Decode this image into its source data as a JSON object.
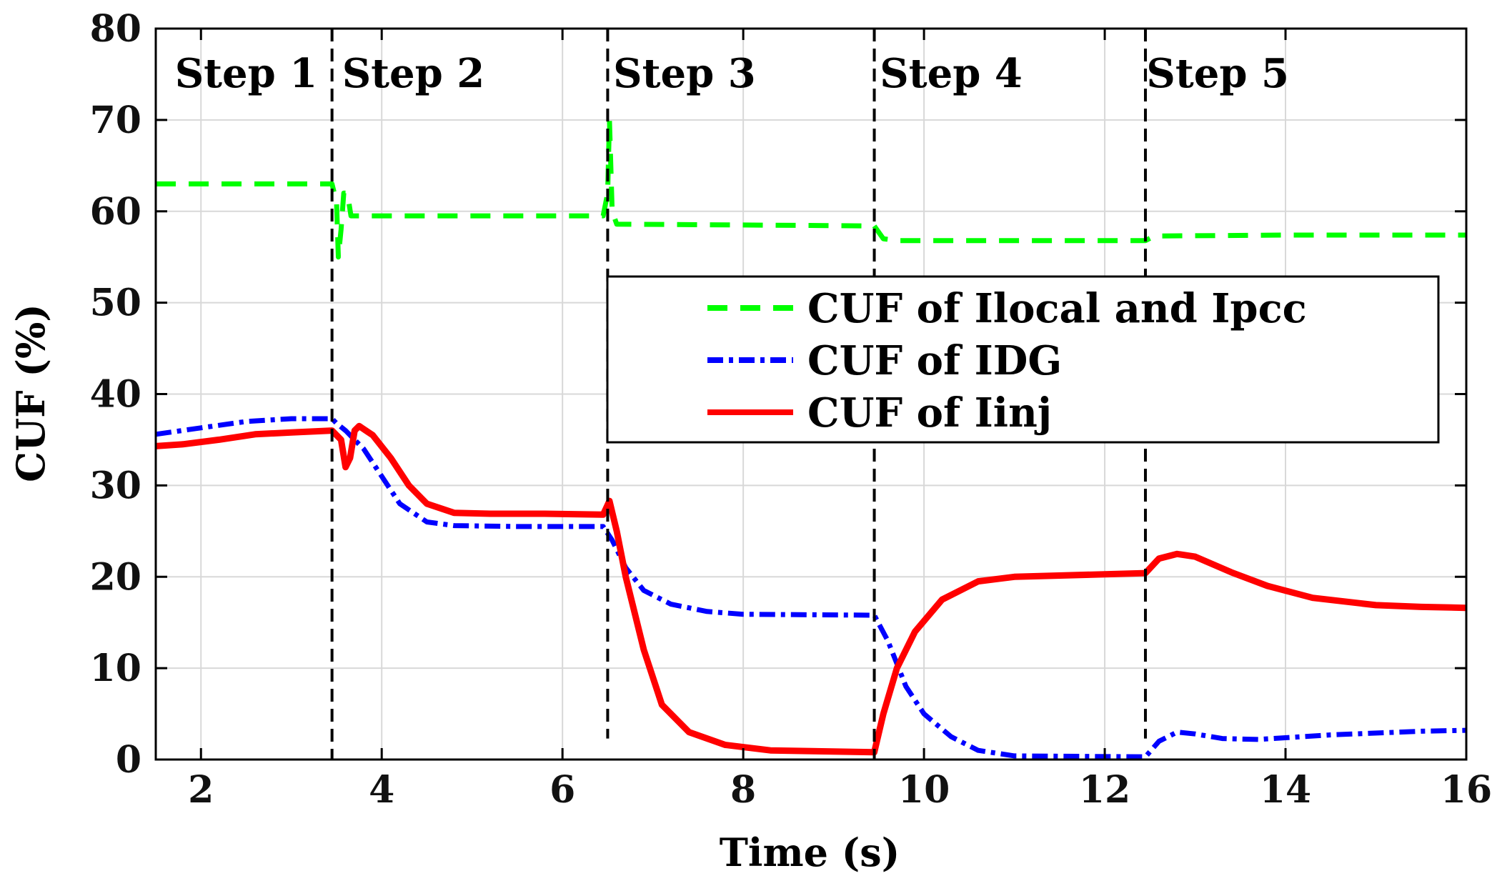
{
  "chart_data": {
    "type": "line",
    "title": "",
    "xlabel": "Time (s)",
    "ylabel": "CUF (%)",
    "xlim": [
      1.5,
      16
    ],
    "ylim": [
      0,
      80
    ],
    "xticks": [
      2,
      4,
      6,
      8,
      10,
      12,
      14,
      16
    ],
    "yticks": [
      0,
      10,
      20,
      30,
      40,
      50,
      60,
      70,
      80
    ],
    "grid": true,
    "step_boundaries": [
      3.45,
      6.5,
      9.45,
      12.45
    ],
    "step_labels": [
      {
        "text": "Step 1",
        "x": 2.5
      },
      {
        "text": "Step 2",
        "x": 4.35
      },
      {
        "text": "Step 3",
        "x": 7.35
      },
      {
        "text": "Step 4",
        "x": 10.3
      },
      {
        "text": "Step 5",
        "x": 13.25
      }
    ],
    "legend_position": "center-right",
    "series": [
      {
        "name": "CUF of Ilocal and Ipcc",
        "color": "#00ff00",
        "style": "dashed",
        "points": [
          [
            1.5,
            63
          ],
          [
            3.45,
            63
          ],
          [
            3.5,
            61
          ],
          [
            3.52,
            55
          ],
          [
            3.55,
            58
          ],
          [
            3.58,
            62
          ],
          [
            3.62,
            62
          ],
          [
            3.66,
            59.5
          ],
          [
            3.7,
            59.5
          ],
          [
            5,
            59.5
          ],
          [
            6.45,
            59.5
          ],
          [
            6.5,
            62
          ],
          [
            6.52,
            70
          ],
          [
            6.55,
            60
          ],
          [
            6.6,
            58.6
          ],
          [
            8,
            58.5
          ],
          [
            9.45,
            58.4
          ],
          [
            9.55,
            57
          ],
          [
            9.7,
            56.8
          ],
          [
            11,
            56.8
          ],
          [
            12.45,
            56.8
          ],
          [
            12.55,
            57.3
          ],
          [
            14,
            57.4
          ],
          [
            16,
            57.4
          ]
        ]
      },
      {
        "name": "CUF of IDG",
        "color": "#0000ff",
        "style": "dashdot",
        "points": [
          [
            1.5,
            35.6
          ],
          [
            2,
            36.3
          ],
          [
            2.5,
            37
          ],
          [
            3,
            37.3
          ],
          [
            3.45,
            37.3
          ],
          [
            3.5,
            36.8
          ],
          [
            3.6,
            36
          ],
          [
            3.8,
            34
          ],
          [
            4,
            31
          ],
          [
            4.2,
            28
          ],
          [
            4.5,
            26
          ],
          [
            4.8,
            25.6
          ],
          [
            5.5,
            25.5
          ],
          [
            6.45,
            25.5
          ],
          [
            6.55,
            24
          ],
          [
            6.7,
            21
          ],
          [
            6.9,
            18.5
          ],
          [
            7.2,
            17
          ],
          [
            7.6,
            16.2
          ],
          [
            8,
            15.9
          ],
          [
            9.45,
            15.8
          ],
          [
            9.6,
            13
          ],
          [
            9.8,
            8
          ],
          [
            10,
            5
          ],
          [
            10.3,
            2.5
          ],
          [
            10.6,
            1
          ],
          [
            11,
            0.4
          ],
          [
            12.45,
            0.3
          ],
          [
            12.6,
            2
          ],
          [
            12.8,
            3
          ],
          [
            13,
            2.8
          ],
          [
            13.3,
            2.3
          ],
          [
            13.7,
            2.2
          ],
          [
            14.5,
            2.7
          ],
          [
            15.5,
            3.1
          ],
          [
            16,
            3.2
          ]
        ]
      },
      {
        "name": "CUF of Iinj",
        "color": "#ff0000",
        "style": "solid",
        "points": [
          [
            1.5,
            34.3
          ],
          [
            1.8,
            34.5
          ],
          [
            2.2,
            35
          ],
          [
            2.6,
            35.6
          ],
          [
            3,
            35.8
          ],
          [
            3.45,
            36
          ],
          [
            3.55,
            35
          ],
          [
            3.6,
            32
          ],
          [
            3.65,
            33
          ],
          [
            3.7,
            36
          ],
          [
            3.75,
            36.5
          ],
          [
            3.9,
            35.5
          ],
          [
            4.1,
            33
          ],
          [
            4.3,
            30
          ],
          [
            4.5,
            28
          ],
          [
            4.8,
            27
          ],
          [
            5.2,
            26.9
          ],
          [
            5.8,
            26.9
          ],
          [
            6.45,
            26.8
          ],
          [
            6.52,
            28.3
          ],
          [
            6.6,
            25
          ],
          [
            6.7,
            20
          ],
          [
            6.9,
            12
          ],
          [
            7.1,
            6
          ],
          [
            7.4,
            3
          ],
          [
            7.8,
            1.6
          ],
          [
            8.3,
            1
          ],
          [
            9.45,
            0.8
          ],
          [
            9.55,
            5
          ],
          [
            9.7,
            10
          ],
          [
            9.9,
            14
          ],
          [
            10.2,
            17.5
          ],
          [
            10.6,
            19.5
          ],
          [
            11,
            20
          ],
          [
            12.45,
            20.4
          ],
          [
            12.6,
            22
          ],
          [
            12.8,
            22.5
          ],
          [
            13,
            22.2
          ],
          [
            13.4,
            20.5
          ],
          [
            13.8,
            19
          ],
          [
            14.3,
            17.7
          ],
          [
            15,
            16.9
          ],
          [
            15.5,
            16.7
          ],
          [
            16,
            16.6
          ]
        ]
      }
    ]
  }
}
